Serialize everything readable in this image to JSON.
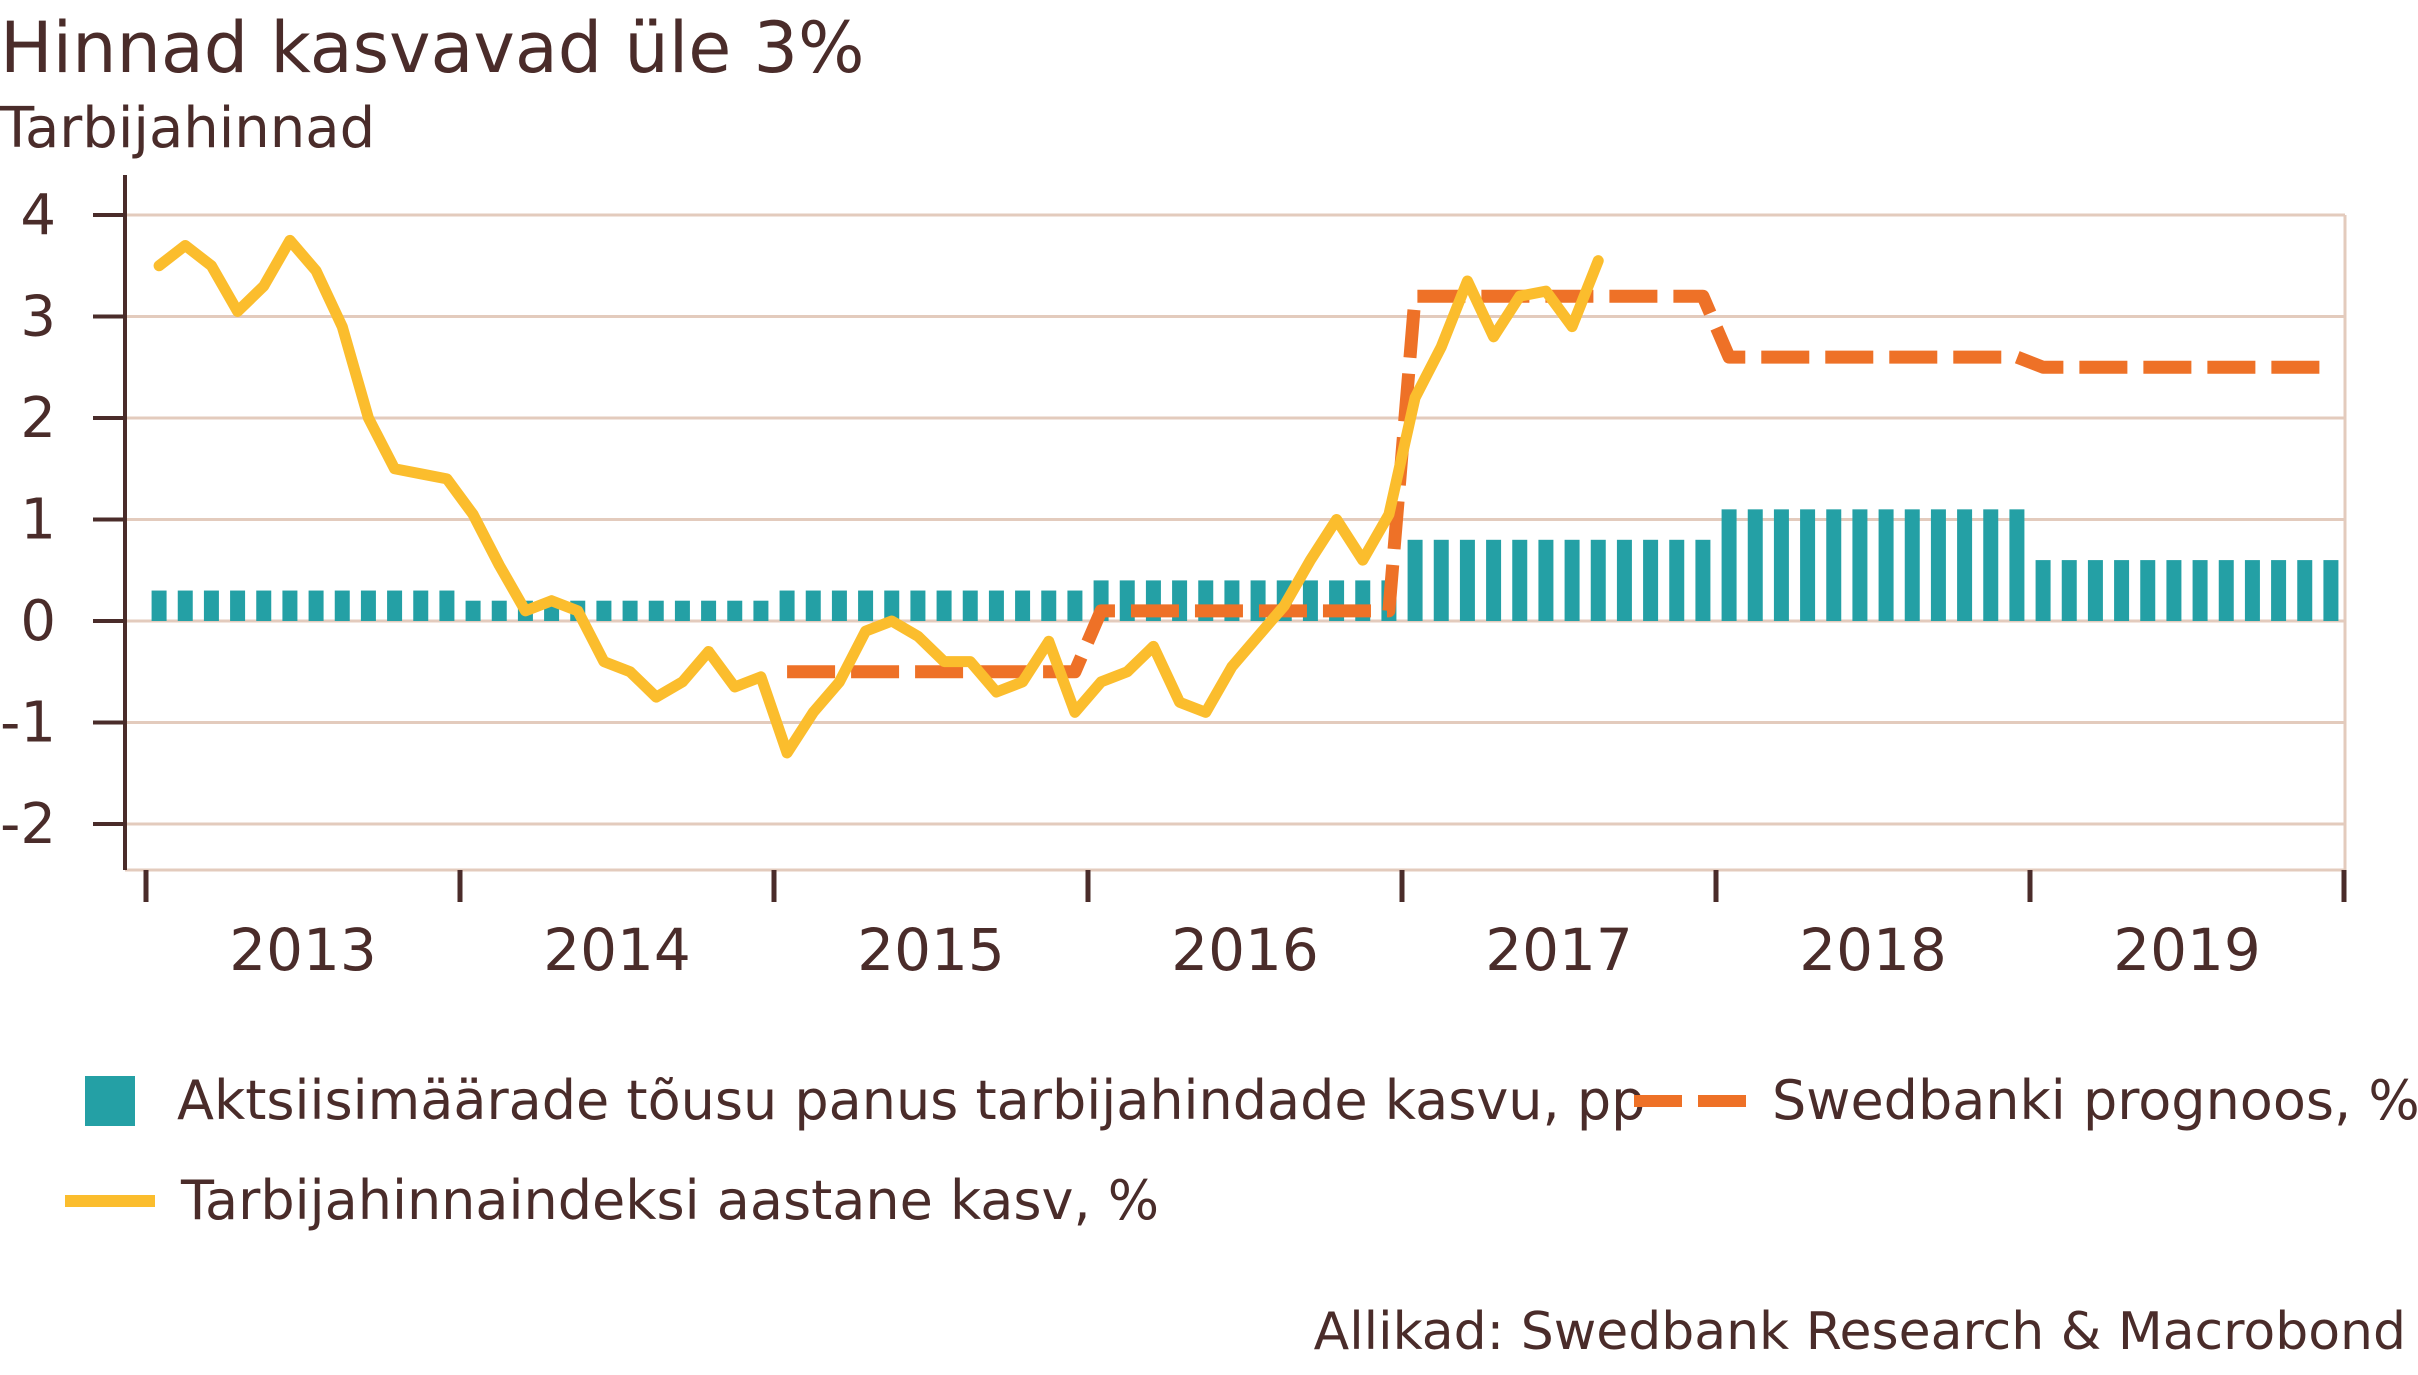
{
  "title": "Hinnad kasvavad üle 3%",
  "subtitle": "Tarbijahinnad",
  "source": "Allikad: Swedbank Research & Macrobond",
  "colors": {
    "excise": "#24a0a5",
    "cpi": "#fbbd2d",
    "forecast": "#ee7127",
    "grid": "#e3cbbd",
    "text": "#4a2c2a"
  },
  "legend": {
    "excise": "Aktsiisimäärade tõusu panus tarbijahindade kasvu, pp",
    "forecast": "Swedbanki prognoos, %",
    "cpi": "Tarbijahinnaindeksi aastane kasv, %"
  },
  "chart_data": {
    "type": "bar+line",
    "title": "Hinnad kasvavad üle 3%",
    "subtitle": "Tarbijahinnad",
    "ylim": [
      -2.4,
      4.4
    ],
    "yticks": [
      -2,
      -1,
      0,
      1,
      2,
      3,
      4
    ],
    "ytick_labels": [
      "-2",
      "-1",
      "0",
      "1",
      "2",
      "3",
      "4"
    ],
    "x_years": [
      "2013",
      "2014",
      "2015",
      "2016",
      "2017",
      "2018",
      "2019"
    ],
    "grid": true,
    "legend_position": "bottom",
    "series": [
      {
        "name": "Aktsiisimäärade tõusu panus tarbijahindade kasvu, pp",
        "type": "bar",
        "note_start": "2013-01",
        "monthly": [
          0.3,
          0.3,
          0.3,
          0.3,
          0.3,
          0.3,
          0.3,
          0.3,
          0.3,
          0.3,
          0.3,
          0.3,
          0.2,
          0.2,
          0.2,
          0.2,
          0.2,
          0.2,
          0.2,
          0.2,
          0.2,
          0.2,
          0.2,
          0.2,
          0.3,
          0.3,
          0.3,
          0.3,
          0.3,
          0.3,
          0.3,
          0.3,
          0.3,
          0.3,
          0.3,
          0.3,
          0.4,
          0.4,
          0.4,
          0.4,
          0.4,
          0.4,
          0.4,
          0.4,
          0.4,
          0.4,
          0.4,
          0.4,
          0.8,
          0.8,
          0.8,
          0.8,
          0.8,
          0.8,
          0.8,
          0.8,
          0.8,
          0.8,
          0.8,
          0.8,
          1.1,
          1.1,
          1.1,
          1.1,
          1.1,
          1.1,
          1.1,
          1.1,
          1.1,
          1.1,
          1.1,
          1.1,
          0.6,
          0.6,
          0.6,
          0.6,
          0.6,
          0.6,
          0.6,
          0.6,
          0.6,
          0.6,
          0.6,
          0.6
        ]
      },
      {
        "name": "Tarbijahinnaindeksi aastane kasv, %",
        "type": "line",
        "monthly": [
          3.5,
          3.7,
          3.5,
          3.05,
          3.3,
          3.75,
          3.45,
          2.9,
          2.0,
          1.5,
          1.45,
          1.4,
          1.05,
          0.55,
          0.1,
          0.2,
          0.1,
          -0.4,
          -0.5,
          -0.75,
          -0.6,
          -0.3,
          -0.65,
          -0.55,
          -1.3,
          -0.9,
          -0.6,
          -0.1,
          0.0,
          -0.15,
          -0.4,
          -0.4,
          -0.7,
          -0.6,
          -0.2,
          -0.9,
          -0.6,
          -0.5,
          -0.25,
          -0.8,
          -0.9,
          -0.45,
          -0.15,
          0.15,
          0.6,
          1.0,
          0.6,
          1.05,
          2.2,
          2.7,
          3.35,
          2.8,
          3.2,
          3.25,
          2.9,
          3.55
        ]
      },
      {
        "name": "Swedbanki prognoos, %",
        "type": "line-dashed",
        "points": [
          [
            "2015-01",
            -0.5
          ],
          [
            "2015-12",
            -0.5
          ],
          [
            "2016-01",
            0.1
          ],
          [
            "2016-12",
            0.1
          ],
          [
            "2017-01",
            3.2
          ],
          [
            "2017-12",
            3.2
          ],
          [
            "2018-01",
            2.6
          ],
          [
            "2018-12",
            2.6
          ],
          [
            "2019-01",
            2.5
          ],
          [
            "2019-12",
            2.5
          ]
        ]
      }
    ]
  }
}
